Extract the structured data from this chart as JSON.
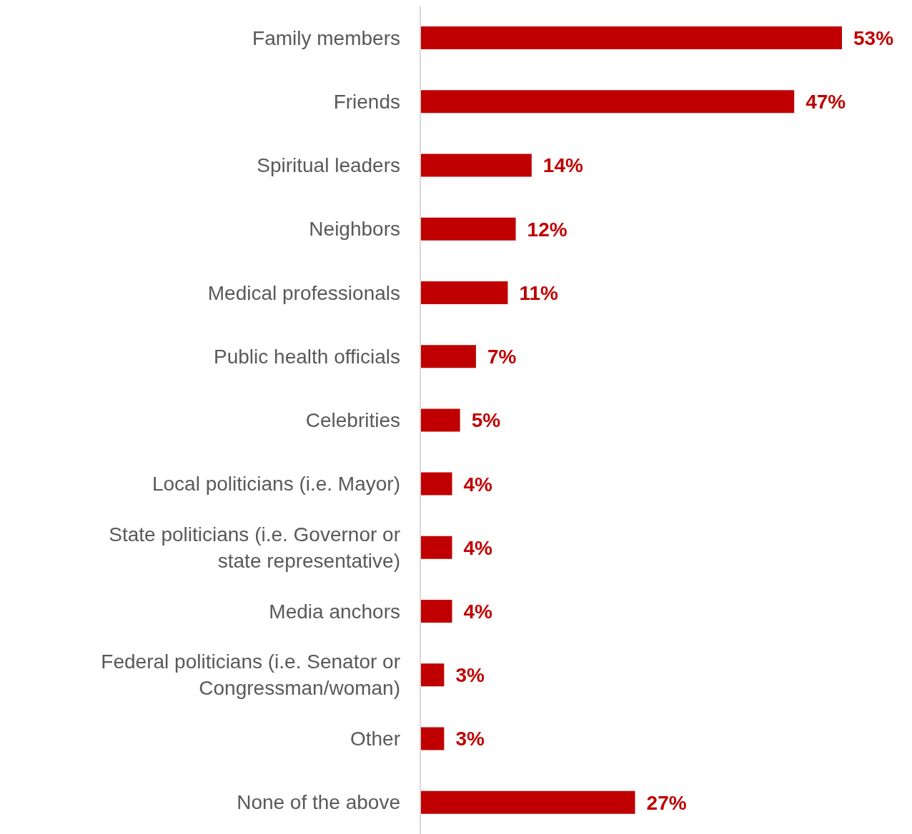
{
  "chart_data": {
    "type": "bar",
    "orientation": "horizontal",
    "categories": [
      "Family members",
      "Friends",
      "Spiritual leaders",
      "Neighbors",
      "Medical professionals",
      "Public health officials",
      "Celebrities",
      "Local politicians (i.e. Mayor)",
      "State politicians (i.e. Governor or state representative)",
      "Media anchors",
      "Federal politicians (i.e. Senator or Congressman/woman)",
      "Other",
      "None of the above"
    ],
    "values": [
      53,
      47,
      14,
      12,
      11,
      7,
      5,
      4,
      4,
      4,
      3,
      3,
      27
    ],
    "color": "#c00000",
    "value_labels": [
      "53%",
      "47%",
      "14%",
      "12%",
      "11%",
      "7%",
      "5%",
      "4%",
      "4%",
      "4%",
      "3%",
      "3%",
      "27%"
    ]
  }
}
